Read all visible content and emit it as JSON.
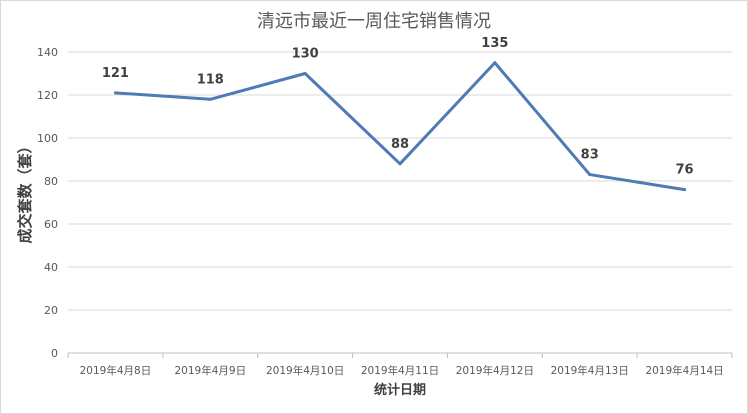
{
  "chart_data": {
    "type": "line",
    "title": "清远市最近一周住宅销售情况",
    "xlabel": "统计日期",
    "ylabel": "成交套数（套）",
    "categories": [
      "2019年4月8日",
      "2019年4月9日",
      "2019年4月10日",
      "2019年4月11日",
      "2019年4月12日",
      "2019年4月13日",
      "2019年4月14日"
    ],
    "series": [
      {
        "values": [
          121,
          118,
          130,
          88,
          135,
          83,
          76
        ],
        "color": "#4e7ab5"
      }
    ],
    "ylim": [
      0,
      140
    ],
    "yticks": [
      "0",
      "20",
      "40",
      "60",
      "80",
      "100",
      "120",
      "140"
    ],
    "grid": true,
    "legend": "none",
    "data_labels": true
  }
}
